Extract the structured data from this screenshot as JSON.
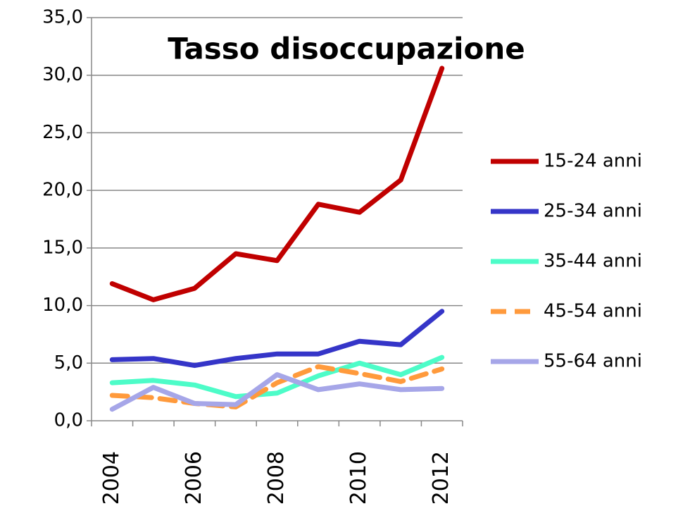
{
  "chart_data": {
    "type": "line",
    "title": "Tasso disoccupazione",
    "categories": [
      "2004",
      null,
      "2006",
      null,
      "2008",
      null,
      "2010",
      null,
      "2012"
    ],
    "series": [
      {
        "name": "15-24 anni",
        "color": "#c00000",
        "values": [
          11.9,
          10.5,
          11.5,
          14.5,
          13.9,
          18.8,
          18.1,
          20.9,
          30.6
        ]
      },
      {
        "name": "25-34 anni",
        "color": "#3535c8",
        "values": [
          5.3,
          5.4,
          4.8,
          5.4,
          5.8,
          5.8,
          6.9,
          6.6,
          9.5
        ]
      },
      {
        "name": "35-44 anni",
        "color": "#4dfcc8",
        "values": [
          3.3,
          3.5,
          3.1,
          2.1,
          2.4,
          3.9,
          5.0,
          4.0,
          5.5
        ]
      },
      {
        "name": "45-54 anni",
        "color": "#ff9a3c",
        "dash": true,
        "values": [
          2.2,
          2.0,
          1.5,
          1.2,
          3.3,
          4.7,
          4.1,
          3.4,
          4.5
        ]
      },
      {
        "name": "55-64 anni",
        "color": "#a6a6e8",
        "values": [
          1.0,
          2.9,
          1.5,
          1.4,
          4.0,
          2.7,
          3.2,
          2.7,
          2.8
        ]
      }
    ],
    "ylim": [
      0,
      35
    ],
    "yticks": [
      {
        "value": 0,
        "label": "0,0"
      },
      {
        "value": 5,
        "label": "5,0"
      },
      {
        "value": 10,
        "label": "10,0"
      },
      {
        "value": 15,
        "label": "15,0"
      },
      {
        "value": 20,
        "label": "20,0"
      },
      {
        "value": 25,
        "label": "25,0"
      },
      {
        "value": 30,
        "label": "30,0"
      },
      {
        "value": 35,
        "label": "35,0"
      }
    ],
    "grid": true,
    "legend": "right"
  }
}
